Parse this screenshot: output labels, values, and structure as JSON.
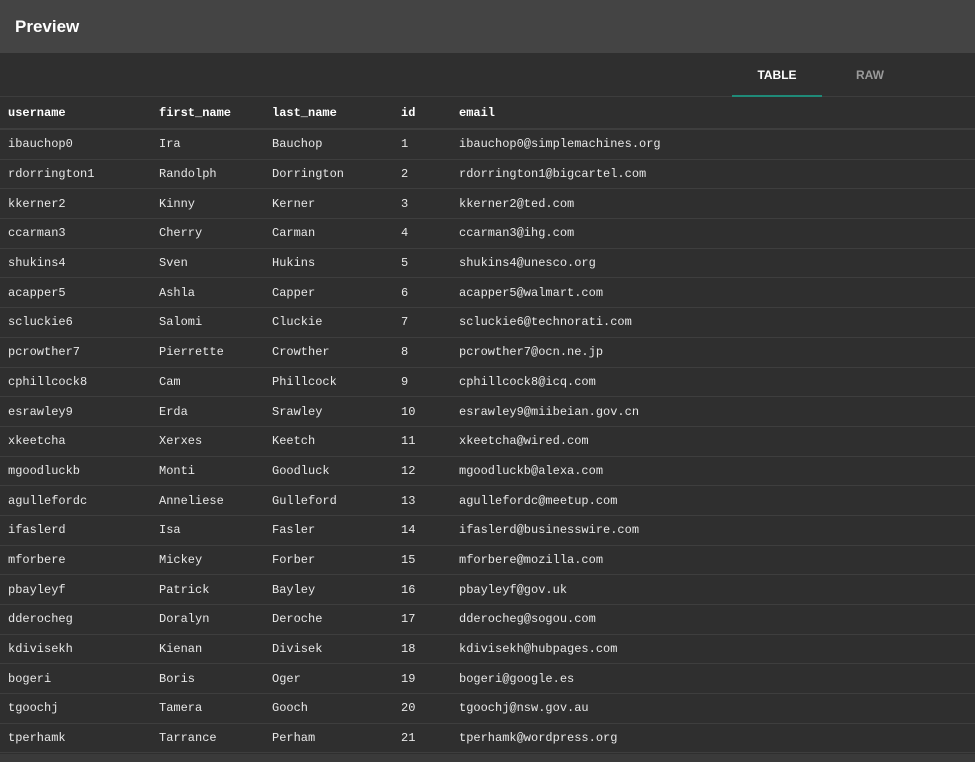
{
  "title": "Preview",
  "tabs": [
    {
      "label": "TABLE",
      "active": true
    },
    {
      "label": "RAW",
      "active": false
    }
  ],
  "accent_color": "#1f8a78",
  "table": {
    "columns": [
      "username",
      "first_name",
      "last_name",
      "id",
      "email"
    ],
    "rows": [
      [
        "ibauchop0",
        "Ira",
        "Bauchop",
        "1",
        "ibauchop0@simplemachines.org"
      ],
      [
        "rdorrington1",
        "Randolph",
        "Dorrington",
        "2",
        "rdorrington1@bigcartel.com"
      ],
      [
        "kkerner2",
        "Kinny",
        "Kerner",
        "3",
        "kkerner2@ted.com"
      ],
      [
        "ccarman3",
        "Cherry",
        "Carman",
        "4",
        "ccarman3@ihg.com"
      ],
      [
        "shukins4",
        "Sven",
        "Hukins",
        "5",
        "shukins4@unesco.org"
      ],
      [
        "acapper5",
        "Ashla",
        "Capper",
        "6",
        "acapper5@walmart.com"
      ],
      [
        "scluckie6",
        "Salomi",
        "Cluckie",
        "7",
        "scluckie6@technorati.com"
      ],
      [
        "pcrowther7",
        "Pierrette",
        "Crowther",
        "8",
        "pcrowther7@ocn.ne.jp"
      ],
      [
        "cphillcock8",
        "Cam",
        "Phillcock",
        "9",
        "cphillcock8@icq.com"
      ],
      [
        "esrawley9",
        "Erda",
        "Srawley",
        "10",
        "esrawley9@miibeian.gov.cn"
      ],
      [
        "xkeetcha",
        "Xerxes",
        "Keetch",
        "11",
        "xkeetcha@wired.com"
      ],
      [
        "mgoodluckb",
        "Monti",
        "Goodluck",
        "12",
        "mgoodluckb@alexa.com"
      ],
      [
        "agullefordc",
        "Anneliese",
        "Gulleford",
        "13",
        "agullefordc@meetup.com"
      ],
      [
        "ifaslerd",
        "Isa",
        "Fasler",
        "14",
        "ifaslerd@businesswire.com"
      ],
      [
        "mforbere",
        "Mickey",
        "Forber",
        "15",
        "mforbere@mozilla.com"
      ],
      [
        "pbayleyf",
        "Patrick",
        "Bayley",
        "16",
        "pbayleyf@gov.uk"
      ],
      [
        "dderocheg",
        "Doralyn",
        "Deroche",
        "17",
        "dderocheg@sogou.com"
      ],
      [
        "kdivisekh",
        "Kienan",
        "Divisek",
        "18",
        "kdivisekh@hubpages.com"
      ],
      [
        "bogeri",
        "Boris",
        "Oger",
        "19",
        "bogeri@google.es"
      ],
      [
        "tgoochj",
        "Tamera",
        "Gooch",
        "20",
        "tgoochj@nsw.gov.au"
      ],
      [
        "tperhamk",
        "Tarrance",
        "Perham",
        "21",
        "tperhamk@wordpress.org"
      ]
    ]
  }
}
